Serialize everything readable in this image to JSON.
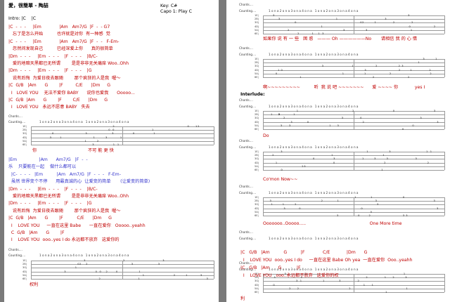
{
  "left": {
    "title": "愛，很簡單 - 陶喆",
    "key": "Key: C#",
    "capo": "Capo 1: Play C",
    "intro": "Intro: |C    |C",
    "lines": [
      {
        "t": "|C  -  -  -     |Em             |Am   Am7/G  |F  -  - G7",
        "c": "red"
      },
      {
        "t": "   忘了是怎么开始          也许就是对你  有一种感  觉",
        "c": "red"
      },
      {
        "t": "|C  -  -  -     |Em             |Am   Am7/G  |F  -  -   F-Em-",
        "c": "red"
      },
      {
        "t": "   忽然间发现自己          已经深爱上你      真的很简单",
        "c": "red"
      },
      {
        "t": "|Dm  -  -  -     |Em  -  -  -    |F  -  -  -    |B/C-",
        "c": "red"
      },
      {
        "t": "   爱的地暗天黑都已无所谓        是是非非无关痛痒 Woo..Ohh",
        "c": "red"
      },
      {
        "t": "|Dm  -  -  -     |Em  -  -  -    |F  -  -  -    |G",
        "c": "red"
      },
      {
        "t": "   说有后悔  为爱日夜去跟随        那个疯狂的人是我  喔～",
        "c": "red"
      },
      {
        "t": "|C  G/B   |Am      G        |F         C/E      |Dm     G",
        "c": "red"
      },
      {
        "t": "  I   LOVE YOU    无法不爱你 BABY      说你也爱我      Ooooo...",
        "c": "red"
      },
      {
        "t": "|C  G/B  |Am      G        |F        C/E      |Dm     G",
        "c": "red"
      },
      {
        "t": "  I   LOVE YOU   永远不愿意 BABY   失去",
        "c": "red"
      }
    ],
    "lines2": [
      {
        "t": "|Em                |Am      Am7/G   |F  -  -",
        "c": "blue"
      },
      {
        "t": "乐    只要能在一起    做什么都可以",
        "c": "blue"
      },
      {
        "t": "  |C-  -  -  -   |Em          |Am   Am7/G  |F  -  -  -   F-Em-",
        "c": "blue"
      },
      {
        "t": "  虽然 世界变个不停      用最真诚的心  让爱变的简单       (让爱变的简单)",
        "c": "blue"
      },
      {
        "t": "|Dm  -  -  -     |Em  -  -  -    |F  -  -  -    |B/C-",
        "c": "red"
      },
      {
        "t": "   爱的地暗天黑都已无所谓        是是非非无关痛痒 Woo..Ohh",
        "c": "red"
      },
      {
        "t": "|Dm  -  -  -     |Em  -  -  -    |F  -  -  -    |G",
        "c": "red"
      },
      {
        "t": "   说有后悔  为爱日夜去跟随        那个疯狂的人是我  喔～",
        "c": "red"
      },
      {
        "t": "|C  G/B   |Am      G        |F          C/E      |Dm     G",
        "c": "red"
      },
      {
        "t": "  I    LOVE YOU     一直在这里 Babe      一直在爱你   Ooooo..yeahh",
        "c": "red"
      },
      {
        "t": "  C  G/B   |Am      G        |F",
        "c": "red"
      },
      {
        "t": "  I    LOVE YOU  ooo..yes I do 永远都不放弃   这爱你的",
        "c": "red"
      }
    ],
    "tab1_words": "你                                     不可 能 更 快",
    "tab2_words": "权利",
    "chords_label": "Chords....",
    "counting_label": "Counting....",
    "counting_text": "1 o n a 2 o n a 3 o n a 4 o n a   1 o n a 2 o n a 3 o n a 4 o n a"
  },
  "right": {
    "interlude": "Interlude:",
    "tab_words": [
      "如果你 说 有 一 些   困 惑   ——— Oh ——————No       请相信 我 的 心 情",
      "啊~~~~~~~~~          听  我 说 吧 ~~~~~~~      爱 ~~~~ 你            yes I",
      "Do",
      "Co'mon Now~~",
      "Ooooooo..Ooooo.....                                              One More time"
    ],
    "lyric_lines": [
      {
        "t": "|C   G/B   |Am          G          |F             C/E            |Dm      G",
        "c": "red"
      },
      {
        "t": "  I    LOVE YOU  ooo..yes I do     一直在这里 Babe Oh yea  一直在爱你  Ooo..yeahh",
        "c": "red"
      },
      {
        "t": "|C   G/B   |Am      G           |F",
        "c": "red"
      },
      {
        "t": "  I    LOVE YOU   ooo..永远都不放弃   这爱你的权",
        "c": "red"
      }
    ],
    "last_word": "利"
  }
}
